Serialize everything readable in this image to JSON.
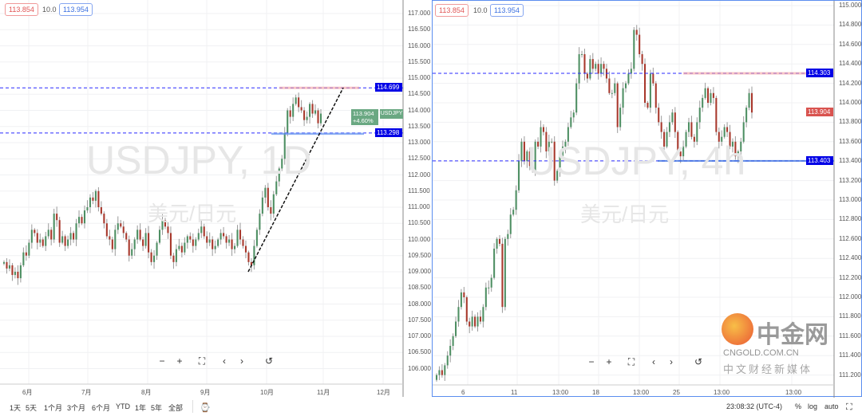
{
  "left_chart": {
    "symbol_watermark": "USDJPY, 1D",
    "name_watermark": "美元/日元",
    "bid": "113.854",
    "spread": "10.0",
    "ask": "113.954",
    "price_axis": [
      "117.000",
      "116.500",
      "116.000",
      "115.500",
      "115.000",
      "114.500",
      "114.000",
      "113.500",
      "113.000",
      "112.500",
      "112.000",
      "111.500",
      "111.000",
      "110.500",
      "110.000",
      "109.500",
      "109.000",
      "108.500",
      "108.000",
      "107.500",
      "107.000",
      "106.500",
      "106.000"
    ],
    "time_axis": [
      "6月",
      "7月",
      "8月",
      "9月",
      "10月",
      "11月",
      "12月"
    ],
    "hlines": [
      {
        "price": 114.699,
        "label": "114.699"
      },
      {
        "price": 113.298,
        "label": "113.298"
      }
    ],
    "symbol_tag": "USDJPY",
    "last_price": "113.904",
    "change": "+4.60%",
    "closes": [
      109.3,
      109.1,
      109.2,
      108.9,
      109.0,
      108.8,
      109.2,
      109.6,
      109.5,
      109.9,
      110.3,
      110.2,
      109.9,
      110.0,
      109.8,
      110.1,
      110.3,
      110.0,
      110.8,
      110.6,
      109.9,
      110.1,
      109.8,
      110.0,
      110.2,
      110.0,
      110.5,
      110.7,
      110.5,
      110.9,
      111.0,
      111.3,
      111.2,
      111.5,
      111.0,
      110.8,
      110.5,
      110.1,
      110.0,
      109.7,
      110.3,
      110.5,
      110.4,
      110.2,
      110.0,
      109.5,
      109.7,
      110.0,
      110.3,
      110.0,
      109.8,
      110.2,
      109.6,
      109.3,
      109.5,
      109.9,
      110.3,
      110.6,
      110.4,
      110.2,
      109.5,
      109.3,
      109.7,
      109.8,
      109.6,
      109.9,
      110.1,
      110.0,
      109.8,
      110.0,
      110.2,
      110.4,
      110.1,
      109.9,
      110.0,
      109.7,
      109.8,
      110.0,
      110.2,
      110.1,
      109.9,
      110.0,
      109.7,
      109.8,
      110.3,
      110.0,
      109.8,
      109.6,
      109.3,
      109.2,
      109.8,
      110.3,
      110.8,
      111.3,
      111.6,
      111.0,
      110.8,
      111.4,
      111.8,
      112.2,
      112.5,
      113.3,
      114.0,
      113.8,
      114.2,
      114.4,
      114.1,
      114.0,
      113.7,
      113.8,
      114.2,
      113.9,
      114.0,
      113.6,
      113.9
    ]
  },
  "right_chart": {
    "symbol_watermark": "USDJPY, 4h",
    "name_watermark": "美元/日元",
    "bid": "113.854",
    "spread": "10.0",
    "ask": "113.954",
    "price_axis": [
      "115.000",
      "114.800",
      "114.600",
      "114.400",
      "114.200",
      "114.000",
      "113.800",
      "113.600",
      "113.400",
      "113.200",
      "113.000",
      "112.800",
      "112.600",
      "112.400",
      "112.200",
      "112.000",
      "111.800",
      "111.600",
      "111.400",
      "111.200"
    ],
    "time_axis": [
      "6",
      "11",
      "13:00",
      "18",
      "13:00",
      "25",
      "13:00",
      "13:00"
    ],
    "hlines": [
      {
        "price": 114.303,
        "label": "114.303"
      },
      {
        "price": 113.403,
        "label": "113.403"
      }
    ],
    "last_price": "113.904",
    "closes": [
      111.2,
      111.25,
      111.2,
      111.3,
      111.4,
      111.5,
      111.6,
      111.75,
      111.9,
      112.05,
      112.0,
      111.75,
      111.7,
      111.8,
      111.7,
      111.8,
      111.75,
      111.9,
      112.1,
      112.1,
      112.2,
      112.5,
      112.6,
      112.55,
      111.9,
      112.6,
      112.65,
      112.85,
      112.9,
      113.1,
      113.4,
      113.6,
      113.4,
      113.5,
      113.35,
      113.3,
      113.6,
      113.55,
      113.75,
      113.7,
      113.5,
      113.6,
      113.6,
      113.2,
      113.3,
      113.45,
      113.55,
      113.6,
      113.75,
      113.85,
      113.9,
      114.2,
      114.5,
      114.5,
      114.3,
      114.25,
      114.45,
      114.35,
      114.4,
      114.3,
      114.4,
      114.35,
      114.25,
      114.1,
      114.1,
      114.2,
      113.75,
      113.95,
      114.15,
      114.2,
      114.3,
      114.35,
      114.75,
      114.7,
      114.5,
      114.4,
      114.0,
      113.95,
      114.3,
      114.2,
      113.95,
      113.8,
      113.7,
      113.55,
      113.7,
      113.8,
      113.9,
      113.7,
      113.5,
      113.45,
      113.55,
      113.7,
      113.8,
      113.65,
      113.6,
      113.8,
      113.95,
      114.05,
      114.15,
      114.0,
      114.1,
      114.05,
      113.7,
      113.6,
      113.65,
      113.75,
      113.7,
      113.55,
      113.6,
      113.45,
      113.5,
      113.6,
      113.8,
      113.95,
      114.1,
      113.9
    ]
  },
  "colors": {
    "up": "#4e8f63",
    "down": "#a8382c",
    "level_line": "#2a2aff",
    "price_tag": "#0000e6",
    "last_left": "#6aa882",
    "last_right": "#d9534f"
  },
  "nav_icons": [
    "minus-icon",
    "plus-icon",
    "fullscreen-icon",
    "chevron-left-icon",
    "chevron-right-icon",
    "reset-icon"
  ],
  "toolbar": {
    "ranges": [
      "1天",
      "5天",
      "1个月",
      "3个月",
      "6个月",
      "YTD",
      "1年",
      "5年",
      "全部"
    ],
    "clock": "23:08:32 (UTC-4)",
    "percent": "%",
    "log": "log",
    "auto": "auto"
  },
  "logo": {
    "name": "中金网",
    "url": "CNGOLD.COM.CN",
    "slogan": "中文财经新媒体"
  }
}
